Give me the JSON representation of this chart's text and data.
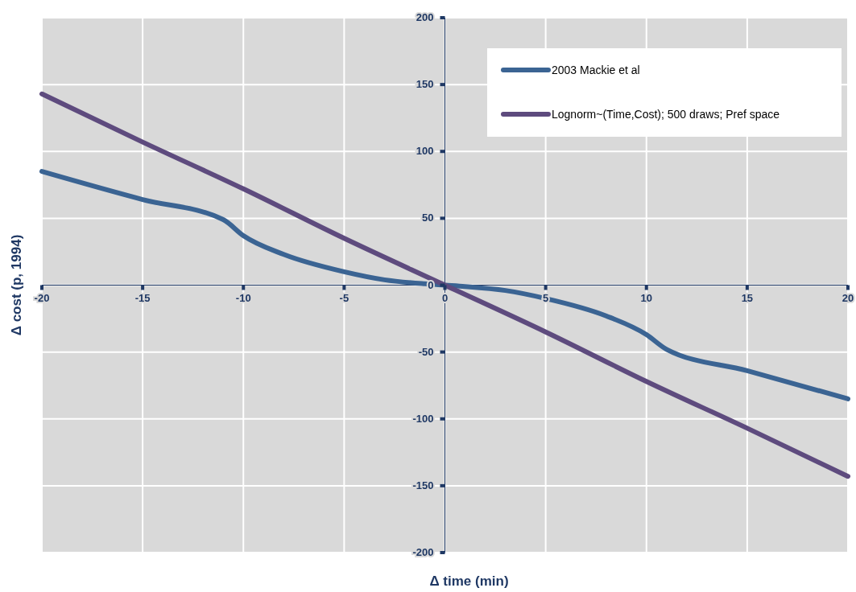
{
  "chart_data": {
    "type": "line",
    "xlabel": "Δ time (min)",
    "ylabel": "Δ cost (p, 1994)",
    "xlim": [
      -20,
      20
    ],
    "ylim": [
      -200,
      200
    ],
    "xticks": [
      -20,
      -15,
      -10,
      -5,
      0,
      5,
      10,
      15,
      20
    ],
    "yticks": [
      -200,
      -150,
      -100,
      -50,
      0,
      50,
      100,
      150,
      200
    ],
    "grid": true,
    "legend": "top right",
    "marker": "none",
    "line_style": "solid",
    "series": [
      {
        "name": "2003 Mackie et al",
        "color": "#3b6493",
        "x": [
          -20,
          -15,
          -11,
          -10,
          -8,
          -5,
          -3,
          -1,
          0,
          1,
          3,
          5,
          8,
          10,
          11,
          15,
          20
        ],
        "values": [
          85,
          64,
          49,
          37,
          23,
          10,
          4,
          1,
          0,
          -1,
          -4,
          -10,
          -23,
          -37,
          -48,
          -64,
          -85
        ]
      },
      {
        "name": "Lognorm~(Time,Cost); 500 draws; Pref space",
        "color": "#5e4b7e",
        "x": [
          -20,
          -15,
          -10,
          -5,
          0,
          5,
          10,
          15,
          20
        ],
        "values": [
          143,
          107,
          72,
          35,
          0,
          -35,
          -72,
          -107,
          -143
        ]
      }
    ]
  }
}
